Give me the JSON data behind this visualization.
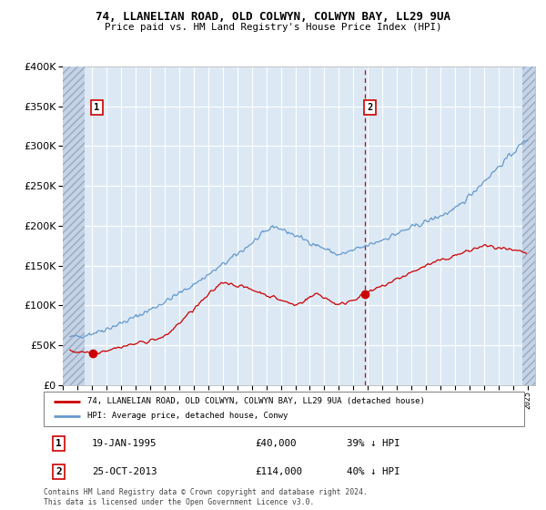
{
  "title": "74, LLANELIAN ROAD, OLD COLWYN, COLWYN BAY, LL29 9UA",
  "subtitle": "Price paid vs. HM Land Registry's House Price Index (HPI)",
  "ylim": [
    0,
    400000
  ],
  "yticks": [
    0,
    50000,
    100000,
    150000,
    200000,
    250000,
    300000,
    350000,
    400000
  ],
  "ytick_labels": [
    "£0",
    "£50K",
    "£100K",
    "£150K",
    "£200K",
    "£250K",
    "£300K",
    "£350K",
    "£400K"
  ],
  "xlim_start": 1993.0,
  "xlim_end": 2025.5,
  "hatch_left_end": 1994.5,
  "hatch_right_start": 2024.6,
  "price_paid_color": "#cc0000",
  "hpi_color": "#6699cc",
  "marker1_date": 1995.05,
  "marker1_value": 40000,
  "marker2_date": 2013.82,
  "marker2_value": 114000,
  "vline_date": 2013.82,
  "legend_label1": "74, LLANELIAN ROAD, OLD COLWYN, COLWYN BAY, LL29 9UA (detached house)",
  "legend_label2": "HPI: Average price, detached house, Conwy",
  "annotation1_date": "19-JAN-1995",
  "annotation1_price": "£40,000",
  "annotation1_hpi": "39% ↓ HPI",
  "annotation2_date": "25-OCT-2013",
  "annotation2_price": "£114,000",
  "annotation2_hpi": "40% ↓ HPI",
  "footer": "Contains HM Land Registry data © Crown copyright and database right 2024.\nThis data is licensed under the Open Government Licence v3.0.",
  "bg_color": "#ffffff",
  "plot_bg_color": "#dce9f5",
  "grid_color": "#ffffff"
}
